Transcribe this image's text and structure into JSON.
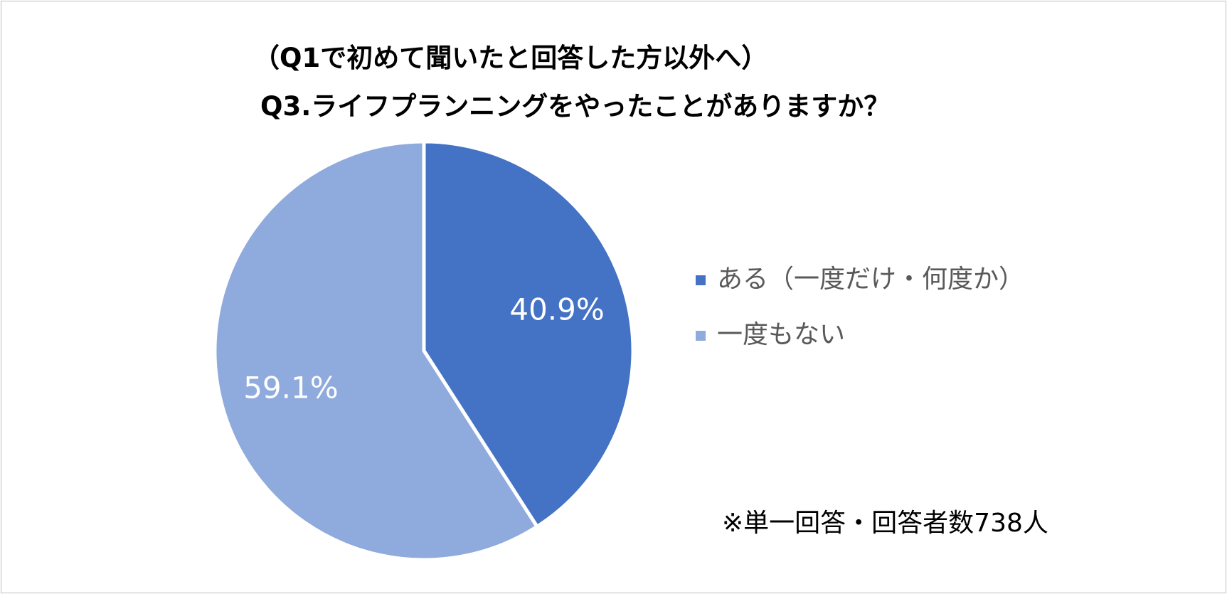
{
  "chart_data": {
    "type": "pie",
    "title": "（Q1で初めて聞いたと回答した方以外へ）",
    "subtitle": "Q3.ライフプランニングをやったことがありますか？",
    "categories": [
      "ある（一度だけ・何度か）",
      "一度もない"
    ],
    "values": [
      40.9,
      59.1
    ],
    "labels": [
      "40.9%",
      "59.1%"
    ],
    "colors": [
      "#4472c4",
      "#8faadc"
    ],
    "legend": "right",
    "start": "top",
    "direction": "clockwise",
    "note": "※単一回答・回答者数738人"
  }
}
